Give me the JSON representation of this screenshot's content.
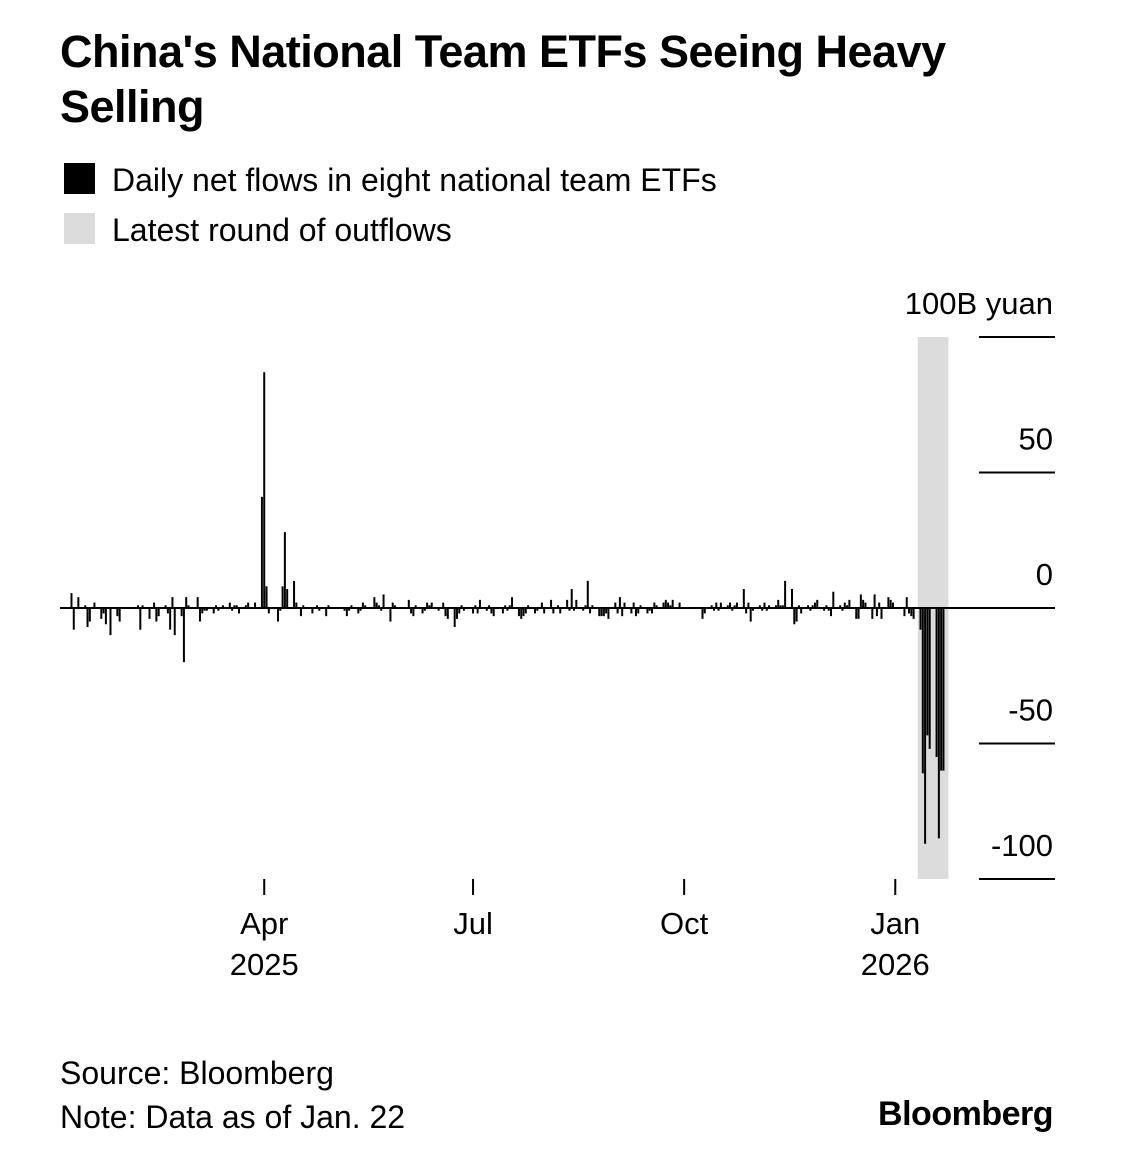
{
  "header": {
    "title": "China's National Team ETFs Seeing Heavy Selling"
  },
  "legend": [
    {
      "label": "Daily net flows in eight national team ETFs",
      "color": "#000000"
    },
    {
      "label": "Latest round of outflows",
      "color": "#dcdcdc"
    }
  ],
  "footer": {
    "source": "Source: Bloomberg",
    "note": "Note: Data as of Jan. 22",
    "logo": "Bloomberg"
  },
  "chart_data": {
    "type": "bar",
    "series": [
      {
        "name": "Daily net flows in eight national team ETFs"
      }
    ],
    "y_unit_label": "100B yuan",
    "ylim": [
      -100,
      100
    ],
    "y_ticks": [
      {
        "value": 100,
        "label": "100B yuan"
      },
      {
        "value": 50,
        "label": "50"
      },
      {
        "value": 0,
        "label": "0"
      },
      {
        "value": -50,
        "label": "-50"
      },
      {
        "value": -100,
        "label": "-100"
      }
    ],
    "x_ticks": [
      {
        "date": "2025-04-01",
        "label": "Apr",
        "sublabel": "2025"
      },
      {
        "date": "2025-07-01",
        "label": "Jul",
        "sublabel": ""
      },
      {
        "date": "2025-10-01",
        "label": "Oct",
        "sublabel": ""
      },
      {
        "date": "2026-01-01",
        "label": "Jan",
        "sublabel": "2026"
      }
    ],
    "xlim": [
      "2025-01-02",
      "2026-02-20"
    ],
    "highlight": {
      "start": "2026-01-13",
      "end": "2026-01-22",
      "label": "Latest round of outflows"
    },
    "grid": false,
    "legend_position": "top-left",
    "data": [
      {
        "date": "2025-01-07",
        "value": 5.5
      },
      {
        "date": "2025-01-08",
        "value": -8
      },
      {
        "date": "2025-01-10",
        "value": 4
      },
      {
        "date": "2025-01-13",
        "value": 1
      },
      {
        "date": "2025-01-14",
        "value": -7
      },
      {
        "date": "2025-01-15",
        "value": -5
      },
      {
        "date": "2025-01-17",
        "value": 2
      },
      {
        "date": "2025-01-20",
        "value": -4
      },
      {
        "date": "2025-01-21",
        "value": -2
      },
      {
        "date": "2025-01-22",
        "value": -6
      },
      {
        "date": "2025-01-24",
        "value": -10
      },
      {
        "date": "2025-01-27",
        "value": -3
      },
      {
        "date": "2025-01-28",
        "value": -5
      },
      {
        "date": "2025-02-05",
        "value": 1
      },
      {
        "date": "2025-02-06",
        "value": -8
      },
      {
        "date": "2025-02-07",
        "value": 1
      },
      {
        "date": "2025-02-10",
        "value": -4
      },
      {
        "date": "2025-02-12",
        "value": 2
      },
      {
        "date": "2025-02-13",
        "value": -5
      },
      {
        "date": "2025-02-14",
        "value": -3
      },
      {
        "date": "2025-02-17",
        "value": 1
      },
      {
        "date": "2025-02-18",
        "value": -2
      },
      {
        "date": "2025-02-19",
        "value": -8
      },
      {
        "date": "2025-02-20",
        "value": 4
      },
      {
        "date": "2025-02-21",
        "value": -10
      },
      {
        "date": "2025-02-24",
        "value": -3
      },
      {
        "date": "2025-02-25",
        "value": -20
      },
      {
        "date": "2025-02-26",
        "value": 4
      },
      {
        "date": "2025-02-27",
        "value": 1
      },
      {
        "date": "2025-03-03",
        "value": 4
      },
      {
        "date": "2025-03-04",
        "value": -5
      },
      {
        "date": "2025-03-05",
        "value": -2
      },
      {
        "date": "2025-03-06",
        "value": -1
      },
      {
        "date": "2025-03-07",
        "value": -1
      },
      {
        "date": "2025-03-10",
        "value": -2
      },
      {
        "date": "2025-03-11",
        "value": 1
      },
      {
        "date": "2025-03-12",
        "value": -1
      },
      {
        "date": "2025-03-14",
        "value": 1
      },
      {
        "date": "2025-03-17",
        "value": 2
      },
      {
        "date": "2025-03-18",
        "value": -1
      },
      {
        "date": "2025-03-19",
        "value": 1
      },
      {
        "date": "2025-03-20",
        "value": 1
      },
      {
        "date": "2025-03-21",
        "value": -2
      },
      {
        "date": "2025-03-24",
        "value": 1
      },
      {
        "date": "2025-03-25",
        "value": 2
      },
      {
        "date": "2025-03-28",
        "value": 2
      },
      {
        "date": "2025-03-31",
        "value": 41
      },
      {
        "date": "2025-04-01",
        "value": 87
      },
      {
        "date": "2025-04-02",
        "value": 8
      },
      {
        "date": "2025-04-03",
        "value": -2
      },
      {
        "date": "2025-04-07",
        "value": -5
      },
      {
        "date": "2025-04-08",
        "value": -1
      },
      {
        "date": "2025-04-09",
        "value": 8
      },
      {
        "date": "2025-04-10",
        "value": 28
      },
      {
        "date": "2025-04-11",
        "value": 7
      },
      {
        "date": "2025-04-14",
        "value": 10
      },
      {
        "date": "2025-04-15",
        "value": 2
      },
      {
        "date": "2025-04-17",
        "value": -3
      },
      {
        "date": "2025-04-18",
        "value": 1
      },
      {
        "date": "2025-04-22",
        "value": -2
      },
      {
        "date": "2025-04-24",
        "value": 1
      },
      {
        "date": "2025-04-25",
        "value": -1
      },
      {
        "date": "2025-04-28",
        "value": -3
      },
      {
        "date": "2025-04-29",
        "value": 1
      },
      {
        "date": "2025-05-06",
        "value": -1
      },
      {
        "date": "2025-05-07",
        "value": -3
      },
      {
        "date": "2025-05-08",
        "value": -1
      },
      {
        "date": "2025-05-09",
        "value": 1
      },
      {
        "date": "2025-05-12",
        "value": -2
      },
      {
        "date": "2025-05-13",
        "value": -1
      },
      {
        "date": "2025-05-14",
        "value": 2
      },
      {
        "date": "2025-05-15",
        "value": 1
      },
      {
        "date": "2025-05-19",
        "value": 4
      },
      {
        "date": "2025-05-20",
        "value": 2
      },
      {
        "date": "2025-05-21",
        "value": 1
      },
      {
        "date": "2025-05-22",
        "value": -1
      },
      {
        "date": "2025-05-23",
        "value": 5
      },
      {
        "date": "2025-05-26",
        "value": -5
      },
      {
        "date": "2025-05-27",
        "value": 2
      },
      {
        "date": "2025-05-28",
        "value": 1
      },
      {
        "date": "2025-06-03",
        "value": 3
      },
      {
        "date": "2025-06-04",
        "value": -2
      },
      {
        "date": "2025-06-05",
        "value": -3
      },
      {
        "date": "2025-06-06",
        "value": 1
      },
      {
        "date": "2025-06-09",
        "value": -2
      },
      {
        "date": "2025-06-10",
        "value": -1
      },
      {
        "date": "2025-06-11",
        "value": 2
      },
      {
        "date": "2025-06-12",
        "value": 1
      },
      {
        "date": "2025-06-13",
        "value": 2
      },
      {
        "date": "2025-06-16",
        "value": -1
      },
      {
        "date": "2025-06-18",
        "value": 2
      },
      {
        "date": "2025-06-19",
        "value": -3
      },
      {
        "date": "2025-06-20",
        "value": -4
      },
      {
        "date": "2025-06-23",
        "value": -7
      },
      {
        "date": "2025-06-24",
        "value": -4
      },
      {
        "date": "2025-06-25",
        "value": -2
      },
      {
        "date": "2025-06-26",
        "value": 1
      },
      {
        "date": "2025-06-27",
        "value": -1
      },
      {
        "date": "2025-07-01",
        "value": -2
      },
      {
        "date": "2025-07-02",
        "value": 1
      },
      {
        "date": "2025-07-03",
        "value": -2
      },
      {
        "date": "2025-07-04",
        "value": 3
      },
      {
        "date": "2025-07-07",
        "value": -1
      },
      {
        "date": "2025-07-08",
        "value": 1
      },
      {
        "date": "2025-07-09",
        "value": -2
      },
      {
        "date": "2025-07-10",
        "value": -3
      },
      {
        "date": "2025-07-14",
        "value": -2
      },
      {
        "date": "2025-07-15",
        "value": 1
      },
      {
        "date": "2025-07-16",
        "value": -1
      },
      {
        "date": "2025-07-17",
        "value": 1
      },
      {
        "date": "2025-07-18",
        "value": 4
      },
      {
        "date": "2025-07-21",
        "value": -3
      },
      {
        "date": "2025-07-22",
        "value": -4
      },
      {
        "date": "2025-07-23",
        "value": -3
      },
      {
        "date": "2025-07-24",
        "value": -2
      },
      {
        "date": "2025-07-25",
        "value": 1
      },
      {
        "date": "2025-07-28",
        "value": -2
      },
      {
        "date": "2025-07-29",
        "value": -1
      },
      {
        "date": "2025-07-31",
        "value": 2
      },
      {
        "date": "2025-08-01",
        "value": -2
      },
      {
        "date": "2025-08-04",
        "value": 3
      },
      {
        "date": "2025-08-05",
        "value": -2
      },
      {
        "date": "2025-08-07",
        "value": 1
      },
      {
        "date": "2025-08-08",
        "value": -2
      },
      {
        "date": "2025-08-11",
        "value": 3
      },
      {
        "date": "2025-08-12",
        "value": -1
      },
      {
        "date": "2025-08-13",
        "value": 7
      },
      {
        "date": "2025-08-14",
        "value": -1
      },
      {
        "date": "2025-08-15",
        "value": 3
      },
      {
        "date": "2025-08-18",
        "value": -1
      },
      {
        "date": "2025-08-19",
        "value": 1
      },
      {
        "date": "2025-08-20",
        "value": 10
      },
      {
        "date": "2025-08-21",
        "value": -2
      },
      {
        "date": "2025-08-22",
        "value": 1
      },
      {
        "date": "2025-08-25",
        "value": -3
      },
      {
        "date": "2025-08-26",
        "value": -3
      },
      {
        "date": "2025-08-27",
        "value": -3
      },
      {
        "date": "2025-08-28",
        "value": -2
      },
      {
        "date": "2025-08-29",
        "value": -4
      },
      {
        "date": "2025-09-01",
        "value": 2
      },
      {
        "date": "2025-09-02",
        "value": -2
      },
      {
        "date": "2025-09-03",
        "value": 4
      },
      {
        "date": "2025-09-04",
        "value": -3
      },
      {
        "date": "2025-09-05",
        "value": 2
      },
      {
        "date": "2025-09-08",
        "value": -2
      },
      {
        "date": "2025-09-09",
        "value": 2
      },
      {
        "date": "2025-09-10",
        "value": -3
      },
      {
        "date": "2025-09-11",
        "value": -2
      },
      {
        "date": "2025-09-12",
        "value": 1
      },
      {
        "date": "2025-09-15",
        "value": -2
      },
      {
        "date": "2025-09-16",
        "value": -1
      },
      {
        "date": "2025-09-17",
        "value": -2
      },
      {
        "date": "2025-09-18",
        "value": 2
      },
      {
        "date": "2025-09-19",
        "value": 1
      },
      {
        "date": "2025-09-22",
        "value": 2
      },
      {
        "date": "2025-09-23",
        "value": 3
      },
      {
        "date": "2025-09-24",
        "value": 2
      },
      {
        "date": "2025-09-25",
        "value": 1
      },
      {
        "date": "2025-09-26",
        "value": 3
      },
      {
        "date": "2025-09-29",
        "value": 2
      },
      {
        "date": "2025-10-09",
        "value": -4
      },
      {
        "date": "2025-10-10",
        "value": -2
      },
      {
        "date": "2025-10-13",
        "value": 1
      },
      {
        "date": "2025-10-14",
        "value": -1
      },
      {
        "date": "2025-10-15",
        "value": 2
      },
      {
        "date": "2025-10-16",
        "value": -1
      },
      {
        "date": "2025-10-17",
        "value": 2
      },
      {
        "date": "2025-10-20",
        "value": 1
      },
      {
        "date": "2025-10-21",
        "value": 2
      },
      {
        "date": "2025-10-22",
        "value": -1
      },
      {
        "date": "2025-10-23",
        "value": 1
      },
      {
        "date": "2025-10-24",
        "value": 2
      },
      {
        "date": "2025-10-27",
        "value": 7
      },
      {
        "date": "2025-10-28",
        "value": -2
      },
      {
        "date": "2025-10-29",
        "value": 2
      },
      {
        "date": "2025-10-30",
        "value": -5
      },
      {
        "date": "2025-10-31",
        "value": -1
      },
      {
        "date": "2025-11-03",
        "value": 1
      },
      {
        "date": "2025-11-04",
        "value": -1
      },
      {
        "date": "2025-11-05",
        "value": 2
      },
      {
        "date": "2025-11-06",
        "value": -1
      },
      {
        "date": "2025-11-07",
        "value": 1
      },
      {
        "date": "2025-11-10",
        "value": 1
      },
      {
        "date": "2025-11-11",
        "value": 3
      },
      {
        "date": "2025-11-12",
        "value": 1
      },
      {
        "date": "2025-11-13",
        "value": 1
      },
      {
        "date": "2025-11-14",
        "value": 10
      },
      {
        "date": "2025-11-17",
        "value": 7
      },
      {
        "date": "2025-11-18",
        "value": -6
      },
      {
        "date": "2025-11-19",
        "value": -5
      },
      {
        "date": "2025-11-20",
        "value": 1
      },
      {
        "date": "2025-11-21",
        "value": -2
      },
      {
        "date": "2025-11-24",
        "value": 1
      },
      {
        "date": "2025-11-25",
        "value": -1
      },
      {
        "date": "2025-11-26",
        "value": 1
      },
      {
        "date": "2025-11-27",
        "value": 2
      },
      {
        "date": "2025-11-28",
        "value": 3
      },
      {
        "date": "2025-12-01",
        "value": -1
      },
      {
        "date": "2025-12-02",
        "value": 1
      },
      {
        "date": "2025-12-03",
        "value": -1
      },
      {
        "date": "2025-12-04",
        "value": -3
      },
      {
        "date": "2025-12-05",
        "value": 6
      },
      {
        "date": "2025-12-08",
        "value": 1
      },
      {
        "date": "2025-12-09",
        "value": -1
      },
      {
        "date": "2025-12-10",
        "value": 2
      },
      {
        "date": "2025-12-11",
        "value": 1
      },
      {
        "date": "2025-12-12",
        "value": 3
      },
      {
        "date": "2025-12-15",
        "value": -4
      },
      {
        "date": "2025-12-16",
        "value": -4
      },
      {
        "date": "2025-12-17",
        "value": 5
      },
      {
        "date": "2025-12-18",
        "value": 3
      },
      {
        "date": "2025-12-19",
        "value": 2
      },
      {
        "date": "2025-12-22",
        "value": -4
      },
      {
        "date": "2025-12-23",
        "value": 5
      },
      {
        "date": "2025-12-24",
        "value": -3
      },
      {
        "date": "2025-12-25",
        "value": 2
      },
      {
        "date": "2025-12-26",
        "value": -4
      },
      {
        "date": "2025-12-29",
        "value": 4
      },
      {
        "date": "2025-12-30",
        "value": 3
      },
      {
        "date": "2025-12-31",
        "value": 2
      },
      {
        "date": "2026-01-05",
        "value": -3
      },
      {
        "date": "2026-01-06",
        "value": 4
      },
      {
        "date": "2026-01-07",
        "value": -2
      },
      {
        "date": "2026-01-08",
        "value": -3
      },
      {
        "date": "2026-01-09",
        "value": -4
      },
      {
        "date": "2026-01-12",
        "value": -8
      },
      {
        "date": "2026-01-13",
        "value": -61
      },
      {
        "date": "2026-01-14",
        "value": -87
      },
      {
        "date": "2026-01-15",
        "value": -47
      },
      {
        "date": "2026-01-16",
        "value": -52
      },
      {
        "date": "2026-01-19",
        "value": -55
      },
      {
        "date": "2026-01-20",
        "value": -85
      },
      {
        "date": "2026-01-21",
        "value": -60
      },
      {
        "date": "2026-01-22",
        "value": -60
      }
    ]
  }
}
